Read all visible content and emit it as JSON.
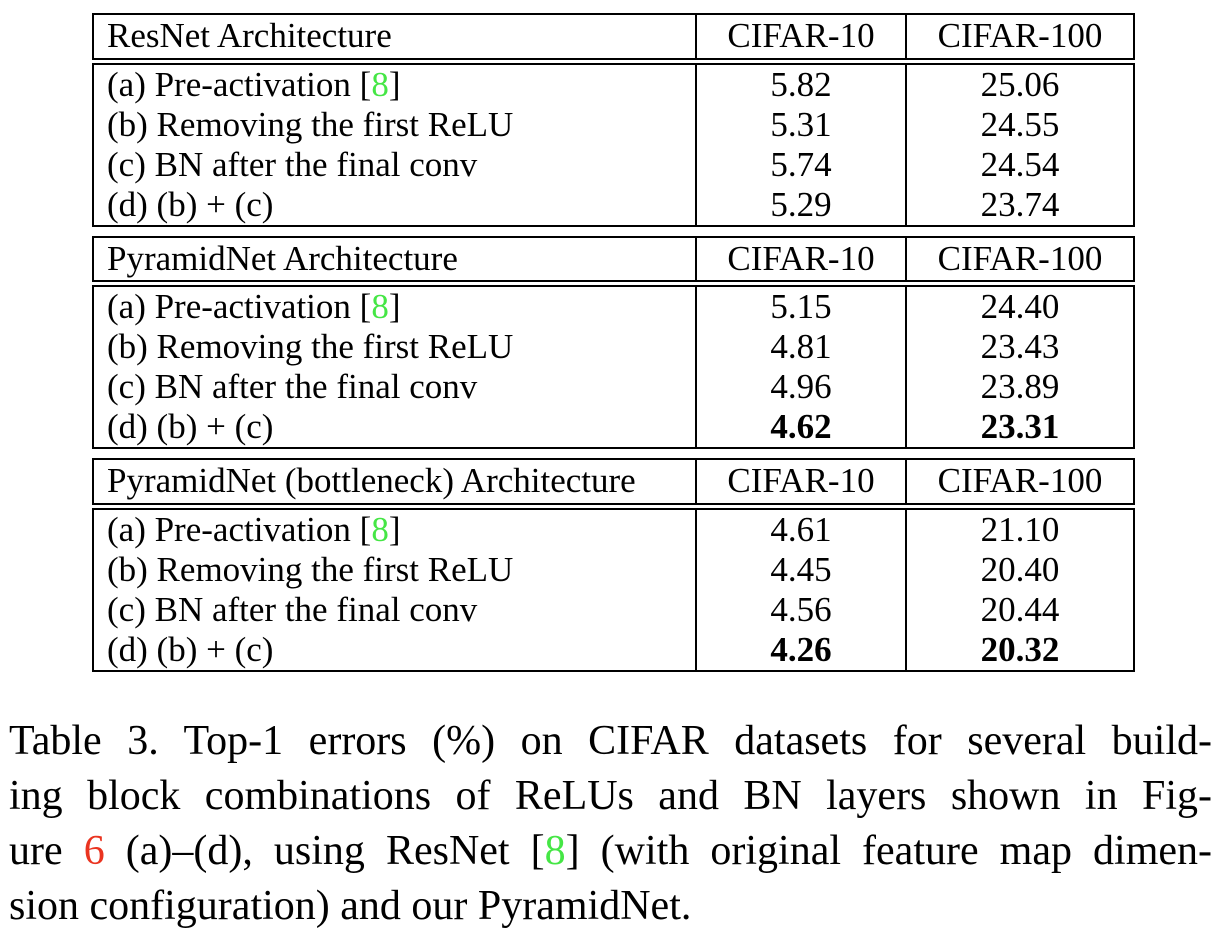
{
  "colors": {
    "text": "#000000",
    "border": "#000000",
    "citation_green": "#45E645",
    "figure_ref_red": "#EA3420",
    "background": "#ffffff"
  },
  "chart_data": {
    "type": "table",
    "title": "Table 3. Top-1 errors (%) on CIFAR datasets",
    "tables": [
      {
        "architecture": "ResNet Architecture",
        "columns": [
          "CIFAR-10",
          "CIFAR-100"
        ],
        "rows": [
          {
            "variant": "(a) Pre-activation [8]",
            "cifar10": 5.82,
            "cifar100": 25.06
          },
          {
            "variant": "(b) Removing the first ReLU",
            "cifar10": 5.31,
            "cifar100": 24.55
          },
          {
            "variant": "(c) BN after the final conv",
            "cifar10": 5.74,
            "cifar100": 24.54
          },
          {
            "variant": "(d) (b) + (c)",
            "cifar10": 5.29,
            "cifar100": 23.74
          }
        ]
      },
      {
        "architecture": "PyramidNet Architecture",
        "columns": [
          "CIFAR-10",
          "CIFAR-100"
        ],
        "rows": [
          {
            "variant": "(a) Pre-activation [8]",
            "cifar10": 5.15,
            "cifar100": 24.4
          },
          {
            "variant": "(b) Removing the first ReLU",
            "cifar10": 4.81,
            "cifar100": 23.43
          },
          {
            "variant": "(c) BN after the final conv",
            "cifar10": 4.96,
            "cifar100": 23.89
          },
          {
            "variant": "(d) (b) + (c)",
            "cifar10": 4.62,
            "cifar100": 23.31,
            "bold": true
          }
        ]
      },
      {
        "architecture": "PyramidNet (bottleneck) Architecture",
        "columns": [
          "CIFAR-10",
          "CIFAR-100"
        ],
        "rows": [
          {
            "variant": "(a) Pre-activation [8]",
            "cifar10": 4.61,
            "cifar100": 21.1
          },
          {
            "variant": "(b) Removing the first ReLU",
            "cifar10": 4.45,
            "cifar100": 20.4
          },
          {
            "variant": "(c) BN after the final conv",
            "cifar10": 4.56,
            "cifar100": 20.44
          },
          {
            "variant": "(d) (b) + (c)",
            "cifar10": 4.26,
            "cifar100": 20.32,
            "bold": true
          }
        ]
      }
    ]
  },
  "tables": [
    {
      "header": {
        "arch": "ResNet Architecture",
        "cifar10": "CIFAR-10",
        "cifar100": "CIFAR-100"
      },
      "rows": [
        {
          "label_pre": "(a) Pre-activation [",
          "cite": "8",
          "label_post": "]",
          "cifar10": "5.82",
          "cifar100": "25.06"
        },
        {
          "label_pre": "(b) Removing the first ReLU",
          "cifar10": "5.31",
          "cifar100": "24.55"
        },
        {
          "label_pre": "(c) BN after the final conv",
          "cifar10": "5.74",
          "cifar100": "24.54"
        },
        {
          "label_pre": "(d) (b) + (c)",
          "cifar10": "5.29",
          "cifar100": "23.74"
        }
      ]
    },
    {
      "header": {
        "arch": "PyramidNet Architecture",
        "cifar10": "CIFAR-10",
        "cifar100": "CIFAR-100"
      },
      "rows": [
        {
          "label_pre": "(a) Pre-activation [",
          "cite": "8",
          "label_post": "]",
          "cifar10": "5.15",
          "cifar100": "24.40"
        },
        {
          "label_pre": "(b) Removing the first ReLU",
          "cifar10": "4.81",
          "cifar100": "23.43"
        },
        {
          "label_pre": "(c) BN after the final conv",
          "cifar10": "4.96",
          "cifar100": "23.89"
        },
        {
          "label_pre": "(d) (b) + (c)",
          "cifar10": "4.62",
          "cifar100": "23.31"
        }
      ]
    },
    {
      "header": {
        "arch": "PyramidNet (bottleneck) Architecture",
        "cifar10": "CIFAR-10",
        "cifar100": "CIFAR-100"
      },
      "rows": [
        {
          "label_pre": "(a) Pre-activation [",
          "cite": "8",
          "label_post": "]",
          "cifar10": "4.61",
          "cifar100": "21.10"
        },
        {
          "label_pre": "(b) Removing the first ReLU",
          "cifar10": "4.45",
          "cifar100": "20.40"
        },
        {
          "label_pre": "(c) BN after the final conv",
          "cifar10": "4.56",
          "cifar100": "20.44"
        },
        {
          "label_pre": "(d) (b) + (c)",
          "cifar10": "4.26",
          "cifar100": "20.32"
        }
      ]
    }
  ],
  "caption": {
    "line1": "Table 3. Top-1 errors (%) on CIFAR datasets for several build-",
    "line2": "ing block combinations of ReLUs and BN layers shown in Fig-",
    "line3_pre": "ure ",
    "line3_figref": "6",
    "line3_mid": " (a)–(d), using ResNet [",
    "line3_cite": "8",
    "line3_post": "] (with original feature map dimen-",
    "line4": "sion configuration) and our PyramidNet."
  }
}
